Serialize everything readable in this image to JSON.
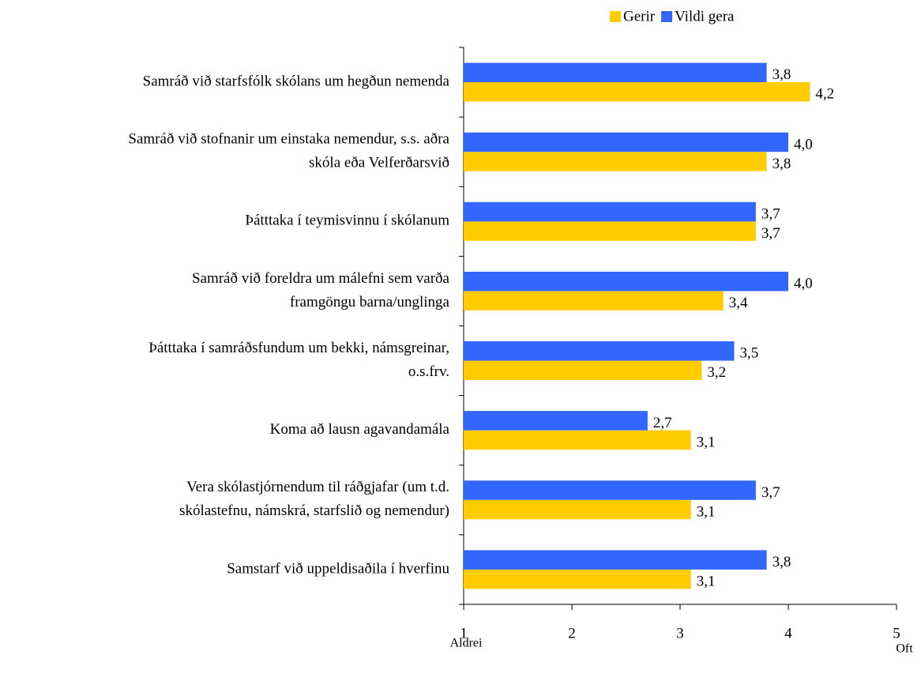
{
  "chart_data": {
    "type": "barh",
    "categories": [
      [
        "Samráð við starfsfólk skólans um hegðun nemenda"
      ],
      [
        "Samráð við stofnanir um einstaka nemendur, s.s. aðra",
        "skóla eða Velferðarsvið"
      ],
      [
        "Þátttaka í teymisvinnu í skólanum"
      ],
      [
        "Samráð við foreldra um málefni sem varða",
        "framgöngu barna/unglinga"
      ],
      [
        "Þátttaka í samráðsfundum um bekki, námsgreinar,",
        "o.s.frv."
      ],
      [
        "Koma að lausn agavandamála"
      ],
      [
        "Vera skólastjórnendum til ráðgjafar (um t.d.",
        "skólastefnu, námskrá, starfslið og nemendur)"
      ],
      [
        "Samstarf við uppeldisaðila í hverfinu"
      ]
    ],
    "series": [
      {
        "name": "Gerir",
        "color": "#ffcc00",
        "values": [
          4.2,
          3.8,
          3.7,
          3.4,
          3.2,
          3.1,
          3.1,
          3.1
        ],
        "value_labels": [
          "4,2",
          "3,8",
          "3,7",
          "3,4",
          "3,2",
          "3,1",
          "3,1",
          "3,1"
        ]
      },
      {
        "name": "Vildi gera",
        "color": "#3366ff",
        "values": [
          3.8,
          4.0,
          3.7,
          4.0,
          3.5,
          2.7,
          3.7,
          3.8
        ],
        "value_labels": [
          "3,8",
          "4,0",
          "3,7",
          "4,0",
          "3,5",
          "2,7",
          "3,7",
          "3,8"
        ]
      }
    ],
    "xlim": [
      1,
      5
    ],
    "xticks": [
      1,
      2,
      3,
      4,
      5
    ],
    "annotations": [
      "Aldrei",
      "Oft"
    ],
    "legend": "top"
  }
}
